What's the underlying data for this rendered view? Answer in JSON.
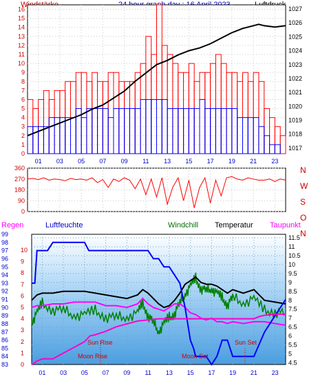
{
  "header": {
    "left_label": "Windstärke",
    "title": "24 hour graph day : 16 April 2023",
    "right_label": "Luftdruck"
  },
  "axis_ticks": {
    "hours": [
      "01",
      "03",
      "05",
      "07",
      "09",
      "11",
      "13",
      "15",
      "17",
      "19",
      "21",
      "23"
    ],
    "wind_speed": [
      "0",
      "1",
      "2",
      "3",
      "4",
      "5",
      "6",
      "7",
      "8",
      "9",
      "10",
      "11",
      "12",
      "13",
      "14",
      "15",
      "16"
    ],
    "pressure": [
      "1017",
      "1018",
      "1019",
      "1020",
      "1021",
      "1022",
      "1023",
      "1024",
      "1025",
      "1026",
      "1027"
    ],
    "direction_deg": [
      "0",
      "90",
      "180",
      "270",
      "360"
    ],
    "direction_letters": [
      "N",
      "W",
      "S",
      "O",
      "N"
    ],
    "humidity": [
      "83",
      "84",
      "85",
      "86",
      "87",
      "88",
      "89",
      "90",
      "91",
      "92",
      "93",
      "94",
      "95",
      "96",
      "97",
      "98",
      "99"
    ],
    "temperature_left": [
      "0",
      "1",
      "2",
      "3",
      "4",
      "5",
      "6",
      "7",
      "8",
      "9",
      "10"
    ],
    "temperature_right": [
      "4.5",
      "5",
      "5.5",
      "6",
      "6.5",
      "7",
      "7.5",
      "8",
      "8.5",
      "9",
      "9.5",
      "10",
      "10.5",
      "11",
      "11.5"
    ]
  },
  "bottom_header": {
    "regen": "Regen",
    "luftfeuchte": "Luftfeuchte",
    "windchill": "Windchill",
    "temperatur": "Temperatur",
    "taupunkt": "Taupunkt"
  },
  "annotations": {
    "sun_rise": "Sun Rise",
    "sun_set": "Sun Set",
    "moon_rise": "Moon Rise",
    "moon_set": "Moon Set"
  },
  "colors": {
    "background_top": "#ffffff",
    "background_bottom": "#8ec4f0",
    "gust": "#ff0000",
    "average_wind": "#0000ff",
    "pressure": "#000000",
    "direction": "#ff0000",
    "humidity": "#0000ff",
    "windchill": "#008000",
    "temperature": "#000000",
    "dewpoint": "#ff00ff",
    "rain": "#ff00ff",
    "label_red": "#cc0000",
    "label_blue": "#0000cc",
    "label_green": "#007000",
    "label_magenta": "#ff00ff"
  },
  "chart_data": [
    {
      "type": "line",
      "x_unit": "hour",
      "xlim": [
        0,
        24
      ],
      "ylim": [
        0,
        16.5
      ],
      "y2lim": [
        1016.6,
        1027.3
      ],
      "series": [
        {
          "axis": "y",
          "style": "bars",
          "x": [
            0,
            0.5,
            1,
            1.5,
            2,
            2.5,
            3,
            3.5,
            4,
            4.5,
            5,
            5.5,
            6,
            6.5,
            7,
            7.5,
            8,
            8.5,
            9,
            9.5,
            10,
            10.5,
            11,
            11.5,
            12,
            12.5,
            13,
            13.5,
            14,
            14.5,
            15,
            15.5,
            16,
            16.5,
            17,
            17.5,
            18,
            18.5,
            19,
            19.5,
            20,
            20.5,
            21,
            21.5,
            22,
            22.5,
            23,
            23.5
          ],
          "values": [
            6,
            5,
            6,
            7,
            6,
            7,
            7,
            8,
            8,
            9,
            9,
            8,
            9,
            8,
            8,
            9,
            9,
            8,
            8,
            8,
            9,
            10,
            13,
            11,
            17,
            12,
            11,
            10,
            9,
            9,
            10,
            8,
            9,
            9,
            10,
            11,
            10,
            9,
            9,
            8,
            9,
            8,
            9,
            8,
            5,
            4,
            3,
            2
          ]
        },
        {
          "axis": "y",
          "style": "bars",
          "x": [
            0,
            0.5,
            1,
            1.5,
            2,
            2.5,
            3,
            3.5,
            4,
            4.5,
            5,
            5.5,
            6,
            6.5,
            7,
            7.5,
            8,
            8.5,
            9,
            9.5,
            10,
            10.5,
            11,
            11.5,
            12,
            12.5,
            13,
            13.5,
            14,
            14.5,
            15,
            15.5,
            16,
            16.5,
            17,
            17.5,
            18,
            18.5,
            19,
            19.5,
            20,
            20.5,
            21,
            21.5,
            22,
            22.5,
            23,
            23.5
          ],
          "values": [
            3,
            3,
            3,
            3,
            4,
            4,
            4,
            4,
            4,
            5,
            4,
            5,
            5,
            5,
            5,
            4,
            5,
            5,
            5,
            5,
            5,
            6,
            6,
            6,
            6,
            6,
            5,
            5,
            5,
            5,
            5,
            5,
            6,
            5,
            5,
            5,
            5,
            5,
            5,
            4,
            4,
            4,
            4,
            3,
            2,
            1,
            1,
            0
          ]
        },
        {
          "axis": "y2",
          "x": [
            0,
            1,
            2,
            3,
            4,
            5,
            6,
            7,
            8,
            9,
            10,
            11,
            12,
            13,
            14,
            15,
            16,
            17,
            18,
            19,
            20,
            21,
            21.5,
            22,
            23,
            24
          ],
          "values": [
            1017.9,
            1018.2,
            1018.5,
            1018.8,
            1019.1,
            1019.4,
            1019.8,
            1020.1,
            1020.6,
            1021.1,
            1021.8,
            1022.4,
            1023.0,
            1023.3,
            1023.7,
            1024.0,
            1024.2,
            1024.5,
            1024.9,
            1025.3,
            1025.6,
            1025.8,
            1025.9,
            1025.8,
            1025.7,
            1025.8
          ]
        }
      ]
    },
    {
      "type": "line",
      "x_unit": "hour",
      "xlim": [
        0,
        24
      ],
      "ylim": [
        0,
        360
      ],
      "series": [
        {
          "x": [
            0,
            0.5,
            1,
            1.5,
            2,
            2.5,
            3,
            3.5,
            4,
            4.5,
            5,
            5.5,
            6,
            6.5,
            7,
            7.5,
            8,
            8.5,
            9,
            9.5,
            10,
            10.5,
            11,
            11.5,
            12,
            12.5,
            13,
            13.5,
            14,
            14.5,
            15,
            15.5,
            16,
            16.5,
            17,
            17.5,
            18,
            18.5,
            19,
            19.5,
            20,
            20.5,
            21,
            21.5,
            22,
            22.5,
            23,
            23.5,
            24
          ],
          "values": [
            270,
            275,
            265,
            280,
            260,
            270,
            265,
            255,
            275,
            265,
            270,
            260,
            280,
            240,
            265,
            200,
            270,
            250,
            280,
            260,
            190,
            270,
            140,
            270,
            120,
            280,
            60,
            200,
            280,
            90,
            260,
            30,
            200,
            280,
            70,
            260,
            130,
            280,
            290,
            270,
            260,
            280,
            270,
            260,
            260,
            270,
            250,
            270,
            260
          ]
        }
      ]
    },
    {
      "type": "line",
      "x_unit": "hour",
      "xlim": [
        0,
        24
      ],
      "ylim": [
        83,
        99
      ],
      "y2lim": [
        4.4,
        11.7
      ],
      "series": [
        {
          "axis": "y",
          "x": [
            0,
            0.3,
            0.5,
            1.5,
            2,
            3,
            4,
            5,
            5.4,
            6,
            8,
            10,
            11,
            11.5,
            12,
            12.5,
            13,
            13.5,
            14,
            14.5,
            15,
            15.3,
            15.5,
            16,
            16.5,
            17,
            17.5,
            18,
            18.5,
            19,
            20,
            21,
            22,
            23,
            24
          ],
          "values": [
            93,
            93,
            97,
            97,
            98,
            98,
            98,
            98,
            97,
            97,
            97,
            97,
            97,
            96,
            96,
            95,
            95,
            94,
            93,
            90,
            86,
            85,
            84,
            84,
            84,
            83,
            84,
            86,
            86,
            84,
            84,
            84,
            87,
            89,
            91
          ]
        },
        {
          "axis": "y2",
          "x": [
            0,
            0.5,
            1,
            2,
            3,
            4,
            5,
            6,
            7,
            8,
            9,
            10,
            10.5,
            11,
            11.5,
            12,
            12.5,
            13,
            13.5,
            14,
            14.5,
            15,
            15.5,
            16,
            16.5,
            17,
            17.5,
            18,
            18.5,
            19,
            20,
            21,
            22,
            23,
            24
          ],
          "values": [
            8.0,
            8.3,
            8.4,
            8.4,
            8.5,
            8.5,
            8.5,
            8.4,
            8.3,
            8.2,
            8.1,
            8.3,
            8.6,
            8.4,
            8.1,
            7.8,
            7.6,
            7.7,
            8.0,
            8.4,
            8.9,
            9.1,
            9.3,
            9.0,
            8.9,
            8.9,
            8.8,
            8.6,
            8.4,
            8.6,
            8.4,
            8.6,
            8.0,
            7.9,
            7.8
          ]
        },
        {
          "axis": "y2",
          "style": "noisy",
          "x": [
            0,
            0.5,
            1,
            2,
            3,
            4,
            5,
            6,
            7,
            8,
            9,
            10,
            10.5,
            11,
            11.5,
            12,
            12.5,
            13,
            13.5,
            14,
            14.5,
            15,
            15.5,
            16,
            16.5,
            17,
            17.5,
            18,
            18.5,
            19,
            20,
            21,
            22,
            23,
            24
          ],
          "values": [
            6.8,
            7.3,
            7.8,
            7.5,
            7.4,
            7.2,
            7.2,
            7.4,
            7.1,
            7.0,
            7.1,
            7.3,
            7.8,
            7.2,
            6.7,
            6.3,
            6.7,
            7.0,
            7.3,
            7.8,
            8.4,
            8.8,
            9.2,
            8.7,
            8.5,
            8.7,
            8.4,
            8.1,
            7.8,
            8.1,
            7.9,
            8.1,
            7.4,
            7.4,
            7.2
          ]
        },
        {
          "axis": "y2",
          "x": [
            0,
            0.5,
            1,
            2,
            3,
            4,
            5,
            6,
            7,
            8,
            9,
            10,
            10.5,
            11,
            11.5,
            12,
            12.5,
            13,
            13.5,
            14,
            14.5,
            15,
            15.5,
            16,
            16.5,
            17,
            17.5,
            18,
            18.5,
            19,
            20,
            21,
            22,
            23,
            24
          ],
          "values": [
            7.6,
            7.7,
            7.7,
            7.8,
            7.8,
            7.9,
            7.9,
            7.9,
            7.7,
            7.7,
            7.6,
            7.8,
            8.1,
            7.8,
            7.6,
            7.5,
            7.4,
            7.6,
            7.8,
            7.8,
            7.6,
            7.3,
            7.2,
            7.0,
            6.9,
            7.0,
            6.8,
            6.8,
            6.7,
            6.8,
            6.7,
            6.8,
            6.8,
            6.7,
            6.6
          ]
        },
        {
          "axis": "rain",
          "x": [
            0,
            0.5,
            1,
            2,
            3,
            4,
            5,
            5.5,
            6,
            7,
            8,
            10,
            12,
            14,
            16,
            18,
            20,
            21,
            21.5,
            22,
            23,
            24
          ],
          "values": [
            0,
            0.3,
            0.5,
            0.5,
            1.0,
            1.5,
            2.0,
            2.5,
            2.6,
            2.9,
            3.3,
            3.8,
            4.0,
            4.0,
            4.0,
            4.0,
            4.0,
            4.0,
            4.2,
            4.3,
            4.4,
            4.4
          ]
        }
      ]
    }
  ]
}
